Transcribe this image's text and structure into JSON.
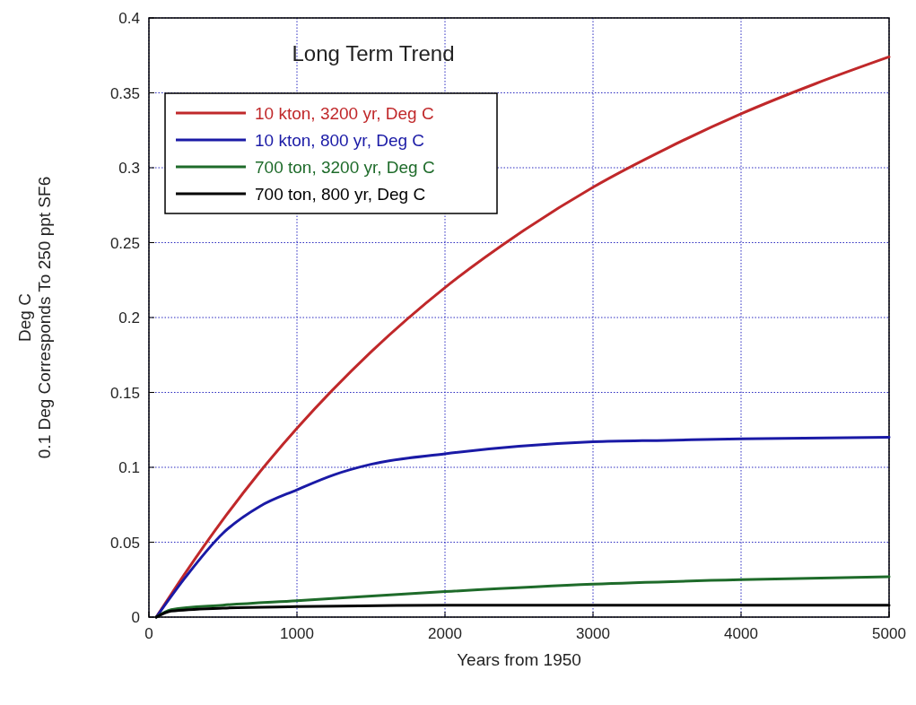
{
  "chart_data": {
    "type": "line",
    "title": "Long Term Trend",
    "xlabel": "Years from 1950",
    "ylabel": "Deg C\n0.1 Deg Corresponds To 250 ppt SF6",
    "xlim": [
      0,
      5000
    ],
    "xticks": [
      0,
      1000,
      2000,
      3000,
      4000,
      5000
    ],
    "ylim": [
      0,
      0.4
    ],
    "yticks": [
      0,
      0.05,
      0.1,
      0.15,
      0.2,
      0.25,
      0.3,
      0.35,
      0.4
    ],
    "grid": true,
    "legend": "top left",
    "line_style": "solid",
    "marker": "none",
    "series": [
      {
        "name": "10 kton, 3200 yr, Deg C",
        "color": "#c0282a",
        "x": [
          50,
          250,
          500,
          750,
          1000,
          1500,
          2000,
          2500,
          3000,
          3500,
          4000,
          4500,
          5000
        ],
        "values": [
          0,
          0.03,
          0.065,
          0.097,
          0.126,
          0.177,
          0.22,
          0.256,
          0.287,
          0.313,
          0.336,
          0.356,
          0.374
        ]
      },
      {
        "name": "10 kton, 800 yr, Deg C",
        "color": "#1a1aa6",
        "x": [
          50,
          250,
          500,
          750,
          1000,
          1250,
          1500,
          2000,
          2500,
          3000,
          3500,
          4000,
          5000
        ],
        "values": [
          0,
          0.027,
          0.056,
          0.074,
          0.085,
          0.095,
          0.102,
          0.109,
          0.114,
          0.117,
          0.118,
          0.119,
          0.12
        ]
      },
      {
        "name": "700 ton, 3200 yr, Deg C",
        "color": "#1e6b2a",
        "x": [
          50,
          150,
          500,
          1000,
          2000,
          3000,
          4000,
          5000
        ],
        "values": [
          0,
          0.005,
          0.008,
          0.011,
          0.017,
          0.022,
          0.025,
          0.027
        ]
      },
      {
        "name": "700 ton, 800 yr, Deg C",
        "color": "#000000",
        "x": [
          50,
          150,
          500,
          1000,
          2000,
          5000
        ],
        "values": [
          0,
          0.004,
          0.006,
          0.007,
          0.008,
          0.008
        ]
      }
    ]
  }
}
